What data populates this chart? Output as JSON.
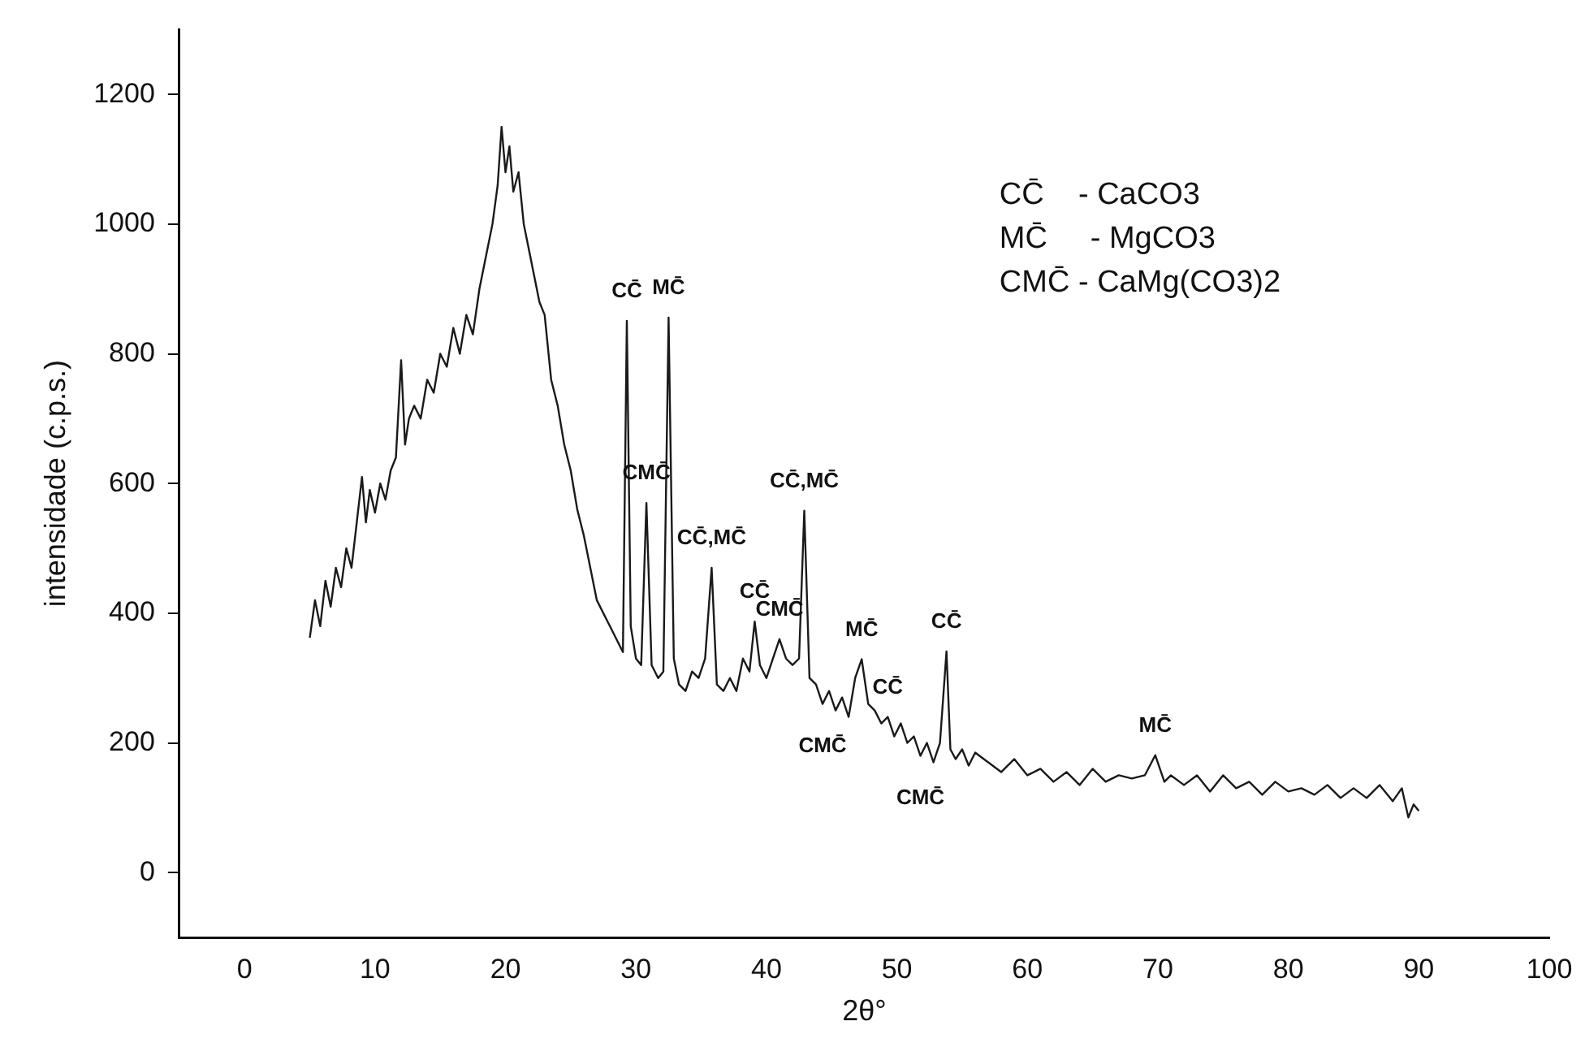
{
  "chart_data": {
    "type": "line",
    "xlabel": "2θ°",
    "ylabel": "intensidade (c.p.s.)",
    "x": [
      5,
      5.4,
      5.8,
      6.2,
      6.6,
      7,
      7.4,
      7.8,
      8.2,
      8.6,
      9,
      9.3,
      9.6,
      10,
      10.4,
      10.8,
      11.2,
      11.6,
      12,
      12.3,
      12.6,
      13,
      13.5,
      14,
      14.5,
      15,
      15.5,
      16,
      16.5,
      17,
      17.5,
      18,
      18.5,
      19,
      19.4,
      19.7,
      20,
      20.3,
      20.6,
      21,
      21.4,
      21.8,
      22.2,
      22.6,
      23,
      23.5,
      24,
      24.5,
      25,
      25.5,
      26,
      26.5,
      27,
      27.5,
      28,
      28.5,
      29,
      29.3,
      29.6,
      30,
      30.4,
      30.8,
      31.2,
      31.7,
      32.1,
      32.5,
      32.9,
      33.3,
      33.8,
      34.3,
      34.8,
      35.3,
      35.8,
      36.2,
      36.7,
      37.2,
      37.7,
      38.2,
      38.7,
      39.1,
      39.5,
      40,
      40.5,
      41,
      41.5,
      42,
      42.5,
      42.9,
      43.3,
      43.8,
      44.3,
      44.8,
      45.3,
      45.8,
      46.3,
      46.8,
      47.3,
      47.8,
      48.3,
      48.8,
      49.3,
      49.8,
      50.3,
      50.8,
      51.3,
      51.8,
      52.3,
      52.8,
      53.3,
      53.8,
      54.1,
      54.5,
      55,
      55.5,
      56,
      57,
      58,
      59,
      60,
      61,
      62,
      63,
      64,
      65,
      66,
      67,
      68,
      69,
      69.8,
      70.5,
      71,
      72,
      73,
      74,
      75,
      76,
      77,
      78,
      79,
      80,
      81,
      82,
      83,
      84,
      85,
      86,
      87,
      88,
      88.7,
      89.2,
      89.6,
      90
    ],
    "series": [
      {
        "color": "#1a1a1a",
        "values": [
          362,
          420,
          380,
          450,
          410,
          470,
          440,
          500,
          470,
          540,
          610,
          540,
          590,
          555,
          600,
          575,
          620,
          640,
          790,
          660,
          700,
          720,
          700,
          760,
          740,
          800,
          780,
          840,
          800,
          860,
          830,
          900,
          950,
          1000,
          1060,
          1150,
          1080,
          1120,
          1050,
          1080,
          1000,
          960,
          920,
          880,
          860,
          760,
          720,
          660,
          620,
          560,
          520,
          470,
          420,
          400,
          380,
          360,
          340,
          851,
          380,
          330,
          320,
          570,
          320,
          300,
          310,
          856,
          330,
          290,
          280,
          310,
          300,
          330,
          470,
          290,
          280,
          300,
          280,
          330,
          310,
          387,
          320,
          300,
          330,
          360,
          330,
          320,
          330,
          558,
          300,
          290,
          260,
          280,
          250,
          270,
          240,
          300,
          329,
          260,
          250,
          230,
          240,
          210,
          230,
          200,
          210,
          180,
          200,
          170,
          200,
          341,
          190,
          175,
          190,
          165,
          185,
          170,
          155,
          175,
          150,
          160,
          140,
          155,
          135,
          160,
          140,
          150,
          145,
          150,
          181,
          140,
          150,
          135,
          150,
          125,
          150,
          130,
          140,
          120,
          140,
          125,
          130,
          120,
          135,
          115,
          130,
          115,
          135,
          110,
          130,
          85,
          105,
          95
        ]
      }
    ],
    "xlim": [
      -5,
      100
    ],
    "xticks": [
      0,
      10,
      20,
      30,
      40,
      50,
      60,
      70,
      80,
      90,
      100
    ],
    "ylim": [
      -100,
      1300
    ],
    "yticks": [
      0,
      200,
      400,
      600,
      800,
      1000,
      1200
    ],
    "grid": false,
    "legend": false,
    "marker": "none",
    "line_style": "solid",
    "annotations": [
      {
        "text": "CC̄",
        "x": 29.3,
        "y": 851
      },
      {
        "text": "MC̄",
        "x": 32.5,
        "y": 856
      },
      {
        "text": "CMC̄",
        "x": 30.8,
        "y": 570
      },
      {
        "text": "CC̄,MC̄",
        "x": 35.8,
        "y": 470
      },
      {
        "text": "CC̄,MC̄",
        "x": 42.9,
        "y": 558
      },
      {
        "text": "CC̄",
        "x": 39.1,
        "y": 387
      },
      {
        "text": "CMC̄",
        "x": 41,
        "y": 360
      },
      {
        "text": "MC̄",
        "x": 47.3,
        "y": 329
      },
      {
        "text": "CC̄",
        "x": 49.3,
        "y": 240
      },
      {
        "text": "CC̄",
        "x": 53.8,
        "y": 341
      },
      {
        "text": "CMC̄",
        "x": 44.3,
        "y": 260
      },
      {
        "text": "CMC̄",
        "x": 51.8,
        "y": 180
      },
      {
        "text": "MC̄",
        "x": 69.8,
        "y": 181
      },
      "CC̄    - CaCO3",
      "MC̄     - MgCO3",
      "CMC̄ - CaMg(CO3)2"
    ]
  }
}
